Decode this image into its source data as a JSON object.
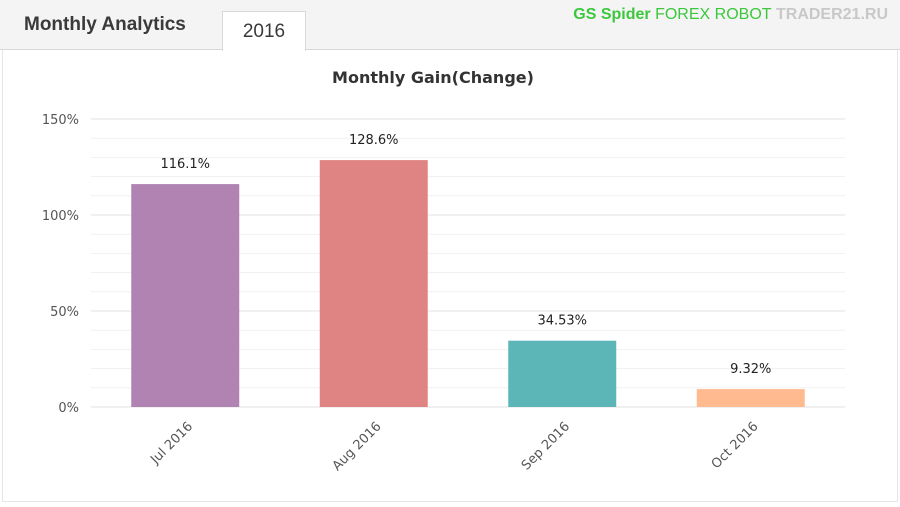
{
  "header": {
    "title": "Monthly Analytics",
    "active_tab": "2016",
    "watermark": [
      "GS Spider",
      "FOREX",
      "ROBOT",
      "TRADER21.RU"
    ]
  },
  "chart_data": {
    "type": "bar",
    "title": "Monthly Gain(Change)",
    "xlabel": "",
    "ylabel": "",
    "categories": [
      "Jul 2016",
      "Aug 2016",
      "Sep 2016",
      "Oct 2016"
    ],
    "values": [
      116.1,
      128.6,
      34.53,
      9.32
    ],
    "value_labels": [
      "116.1%",
      "128.6%",
      "34.53%",
      "9.32%"
    ],
    "colors": [
      "#b083b3",
      "#e08483",
      "#5cb6b8",
      "#ffbb8f"
    ],
    "ylim": [
      0,
      150
    ],
    "yticks": [
      0,
      50,
      100,
      150
    ],
    "ytick_labels": [
      "0%",
      "50%",
      "100%",
      "150%"
    ],
    "grid": true,
    "legend": "none"
  }
}
